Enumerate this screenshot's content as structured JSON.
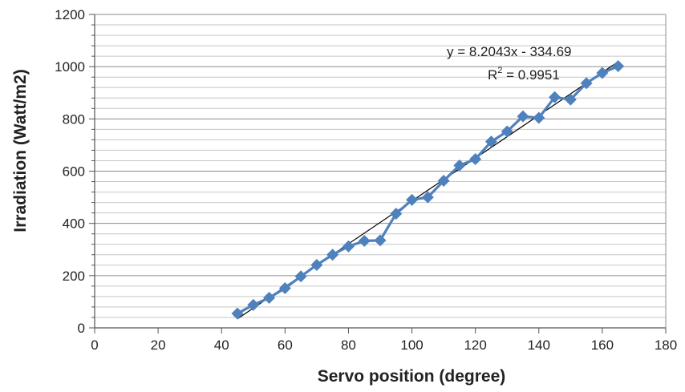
{
  "chart_data": {
    "type": "scatter",
    "title": "",
    "xlabel": "Servo position (degree)",
    "ylabel": "Irradiation (Watt/m2)",
    "xlim": [
      0,
      180
    ],
    "ylim": [
      0,
      1200
    ],
    "xticks": [
      0,
      20,
      40,
      60,
      80,
      100,
      120,
      140,
      160,
      180
    ],
    "yticks": [
      0,
      200,
      400,
      600,
      800,
      1000,
      1200
    ],
    "ytick_labels": [
      "0",
      "200",
      "400",
      "600",
      "800",
      "1000",
      "1200"
    ],
    "xtick_labels": [
      "0",
      "20",
      "40",
      "60",
      "80",
      "100",
      "120",
      "140",
      "160",
      "180"
    ],
    "y_minor_step": 40,
    "grid": true,
    "legend": "none",
    "series": [
      {
        "color": "#4f81bd",
        "marker": "diamond",
        "connected": true,
        "x": [
          45,
          50,
          55,
          60,
          65,
          70,
          75,
          80,
          85,
          90,
          95,
          100,
          105,
          110,
          115,
          120,
          125,
          130,
          135,
          140,
          145,
          150,
          155,
          160,
          165
        ],
        "y": [
          55,
          88,
          115,
          152,
          197,
          241,
          280,
          312,
          333,
          335,
          437,
          490,
          500,
          563,
          622,
          646,
          713,
          752,
          810,
          804,
          883,
          874,
          937,
          976,
          1002
        ]
      }
    ],
    "trendline": {
      "type": "linear",
      "slope": 8.2043,
      "intercept": -334.69,
      "x_range": [
        45,
        165
      ],
      "color": "#000000",
      "equation": "y = 8.2043x - 334.69",
      "r2_label": "R",
      "r2_sup": "2",
      "r2_value": " = 0.9951"
    }
  }
}
